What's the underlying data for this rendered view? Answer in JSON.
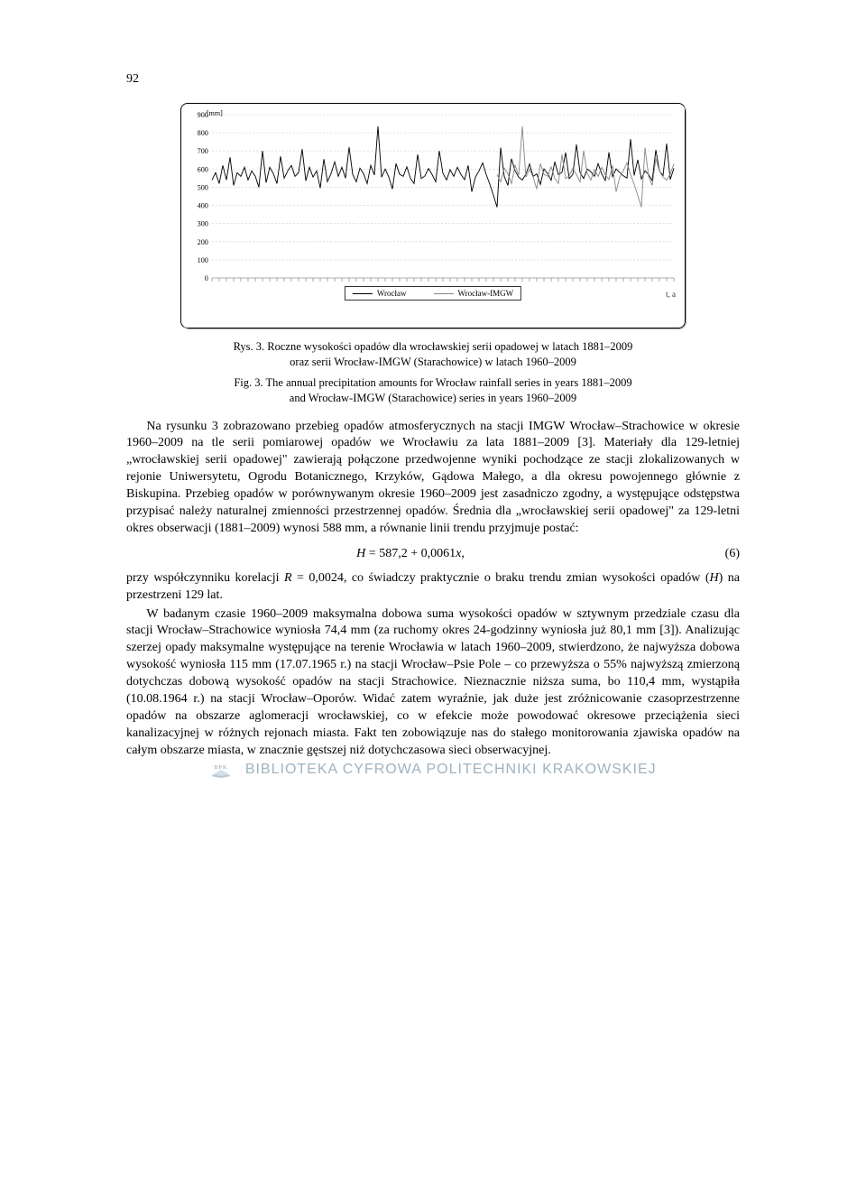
{
  "page_number": "92",
  "chart": {
    "type": "line",
    "y_unit_label": "[mm]",
    "y_ticks": [
      0,
      100,
      200,
      300,
      400,
      500,
      600,
      700,
      800,
      900
    ],
    "ylim": [
      0,
      900
    ],
    "x_axis_arrow": "t, a",
    "background_color": "#ffffff",
    "grid_color": "#cccccc",
    "series": [
      {
        "name": "Wrocław",
        "color": "#000000",
        "xrange": [
          1881,
          2009
        ],
        "values": [
          540,
          580,
          520,
          620,
          540,
          665,
          510,
          580,
          560,
          610,
          540,
          590,
          560,
          500,
          700,
          525,
          610,
          575,
          520,
          670,
          550,
          590,
          620,
          560,
          580,
          710,
          535,
          610,
          556,
          590,
          495,
          655,
          530,
          575,
          640,
          560,
          610,
          550,
          720,
          570,
          530,
          605,
          575,
          520,
          620,
          567,
          835,
          555,
          600,
          556,
          490,
          630,
          571,
          560,
          612,
          549,
          520,
          680,
          548,
          562,
          603,
          570,
          530,
          700,
          576,
          540,
          596,
          560,
          610,
          570,
          542,
          620,
          475,
          555,
          590,
          634,
          570,
          516,
          455,
          390,
          718,
          560,
          510,
          657,
          590,
          555,
          540,
          572,
          628,
          560,
          573,
          515,
          601,
          575,
          538,
          640,
          570,
          582,
          691,
          548,
          570,
          735,
          580,
          548,
          600,
          585,
          560,
          630,
          574,
          537,
          692,
          558,
          601,
          581,
          563,
          550,
          765,
          565,
          651,
          545,
          590,
          570,
          536,
          705,
          590,
          565,
          740,
          542,
          605
        ]
      },
      {
        "name": "Wrocław-IMGW",
        "color": "#888888",
        "xrange": [
          1960,
          2009
        ],
        "values": [
          570,
          530,
          605,
          575,
          520,
          620,
          567,
          835,
          555,
          600,
          556,
          490,
          630,
          571,
          560,
          612,
          549,
          520,
          680,
          548,
          562,
          603,
          570,
          530,
          700,
          576,
          540,
          596,
          560,
          610,
          570,
          542,
          620,
          475,
          555,
          590,
          634,
          570,
          516,
          455,
          390,
          718,
          560,
          510,
          657,
          590,
          555,
          540,
          572,
          628
        ]
      }
    ],
    "legend": {
      "position": "bottom-center",
      "items": [
        {
          "label": "Wrocław",
          "color": "#000000"
        },
        {
          "label": "Wrocław-IMGW",
          "color": "#888888"
        }
      ]
    }
  },
  "caption_pl_prefix": "Rys. 3. ",
  "caption_pl_line1": "Roczne wysokości opadów dla wrocławskiej serii opadowej w latach 1881–2009",
  "caption_pl_line2": "oraz serii Wrocław-IMGW (Starachowice) w latach 1960–2009",
  "caption_en_prefix": "Fig. 3. ",
  "caption_en_line1": "The annual precipitation amounts for Wrocław rainfall series in years 1881–2009",
  "caption_en_line2": "and Wrocław-IMGW (Starachowice) series in years 1960–2009",
  "para1": "Na rysunku 3 zobrazowano przebieg opadów atmosferycznych na stacji IMGW Wrocław–Strachowice w okresie 1960–2009 na tle serii pomiarowej opadów we Wrocławiu za lata 1881–2009 [3]. Materiały dla 129-letniej „wrocławskiej serii opadowej\" zawierają połączone przedwojenne wyniki pochodzące ze stacji zlokalizowanych w rejonie Uniwersytetu, Ogrodu Botanicznego, Krzyków, Gądowa Małego, a dla okresu powojennego głównie z Biskupina. Przebieg opadów w porównywanym okresie 1960–2009 jest zasadniczo zgodny, a występujące odstępstwa przypisać należy naturalnej zmienności przestrzennej opadów. Średnia dla „wrocławskiej serii opadowej\" za 129-letni okres obserwacji (1881–2009) wynosi 588 mm, a równanie linii trendu przyjmuje postać:",
  "equation": "H = 587,2 + 0,0061x,",
  "equation_number": "(6)",
  "para2": "przy współczynniku korelacji R = 0,0024, co świadczy praktycznie o braku trendu zmian wysokości opadów (H) na przestrzeni 129 lat.",
  "para3": "W badanym czasie 1960–2009 maksymalna dobowa suma wysokości opadów w sztywnym przedziale czasu dla stacji Wrocław–Strachowice wyniosła 74,4 mm (za ruchomy okres 24-godzinny wyniosła już 80,1 mm [3]). Analizując szerzej opady maksymalne występujące na terenie Wrocławia w latach 1960–2009, stwierdzono, że najwyższa dobowa wysokość wyniosła 115 mm (17.07.1965 r.) na stacji Wrocław–Psie Pole – co przewyższa o 55% najwyższą zmierzoną dotychczas dobową wysokość opadów na stacji Strachowice. Nieznacznie niższa suma, bo 110,4 mm, wystąpiła (10.08.1964 r.) na stacji Wrocław–Oporów. Widać zatem wyraźnie, jak duże jest zróżnicowanie czasoprzestrzenne opadów na obszarze aglomeracji wrocławskiej, co w efekcie może powodować okresowe przeciążenia sieci kanalizacyjnej w różnych rejonach miasta. Fakt ten zobowiązuje nas do stałego monitorowania zjawiska opadów na całym obszarze miasta, w znacznie gęstszej niż dotychczasowa sieci obserwacyjnej.",
  "footer_text": "BIBLIOTEKA CYFROWA POLITECHNIKI KRAKOWSKIEJ",
  "footer_logo_text": "BPK"
}
